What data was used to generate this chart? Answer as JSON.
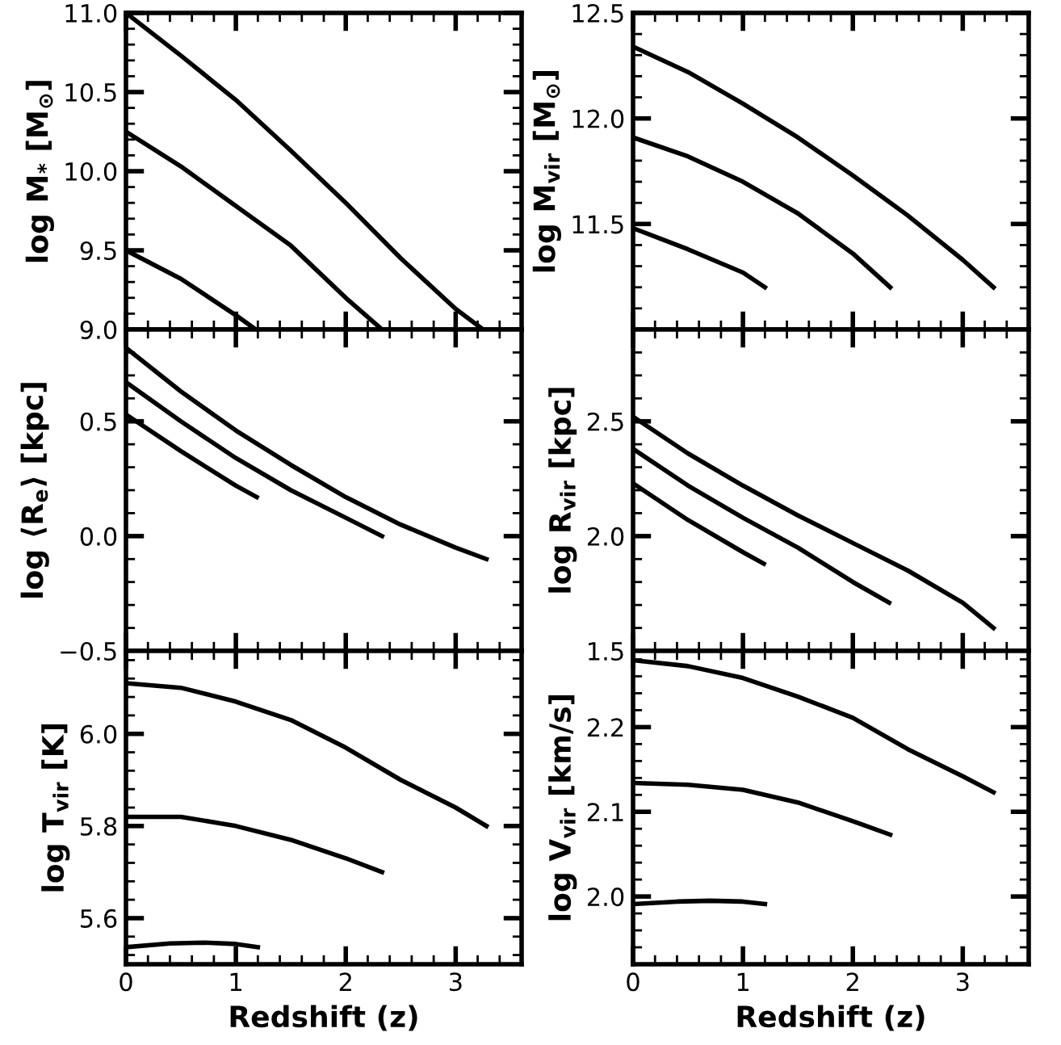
{
  "chart_data": [
    {
      "type": "line",
      "ylabel": "log M$_{*}$ [M$_{⊙}$]",
      "xlim": [
        0,
        3.6
      ],
      "xticks": [
        0,
        1,
        2,
        3
      ],
      "ylim": [
        9.0,
        11.0
      ],
      "yticks": [
        {
          "value": 9.0,
          "label": "9.0"
        },
        9.5,
        {
          "value": 10.0,
          "label": "10.0"
        },
        10.5,
        {
          "value": 11.0,
          "label": "11.0"
        }
      ],
      "tick_labels": "y",
      "grid": false,
      "legend": false,
      "marker": "none",
      "line_style": "solid",
      "series": [
        {
          "color": "#000000",
          "x": [
            0,
            0.5,
            1,
            1.5,
            2,
            2.5,
            3,
            3.25
          ],
          "values": [
            11.0,
            10.73,
            10.45,
            10.13,
            9.8,
            9.45,
            9.13,
            9.0
          ]
        },
        {
          "color": "#000000",
          "x": [
            0,
            0.5,
            1,
            1.5,
            2,
            2.33
          ],
          "values": [
            10.25,
            10.03,
            9.78,
            9.53,
            9.2,
            9.0
          ]
        },
        {
          "color": "#000000",
          "x": [
            0,
            0.5,
            1,
            1.18
          ],
          "values": [
            9.5,
            9.32,
            9.09,
            9.0
          ]
        }
      ]
    },
    {
      "type": "line",
      "ylabel": "log M$_{vir}$ [M$_{⊙}$]",
      "xlim": [
        0,
        3.6
      ],
      "xticks": [
        0,
        1,
        2,
        3
      ],
      "ylim": [
        11.0,
        12.5
      ],
      "yticks": [
        11.5,
        {
          "value": 12.0,
          "label": "12.0"
        },
        12.5
      ],
      "tick_labels": "y",
      "grid": false,
      "legend": false,
      "marker": "none",
      "line_style": "solid",
      "series": [
        {
          "color": "#000000",
          "x": [
            0,
            0.5,
            1,
            1.5,
            2,
            2.5,
            3,
            3.28
          ],
          "values": [
            12.34,
            12.22,
            12.07,
            11.91,
            11.73,
            11.54,
            11.33,
            11.2
          ]
        },
        {
          "color": "#000000",
          "x": [
            0,
            0.5,
            1,
            1.5,
            2,
            2.34
          ],
          "values": [
            11.91,
            11.82,
            11.7,
            11.55,
            11.36,
            11.2
          ]
        },
        {
          "color": "#000000",
          "x": [
            0,
            0.5,
            1,
            1.2
          ],
          "values": [
            11.48,
            11.38,
            11.27,
            11.2
          ]
        }
      ]
    },
    {
      "type": "line",
      "ylabel": "log ⟨R$_{e}$⟩ [kpc]",
      "xlim": [
        0,
        3.6
      ],
      "xticks": [
        0,
        1,
        2,
        3
      ],
      "ylim": [
        -0.5,
        0.9
      ],
      "yticks": [
        {
          "value": -0.5,
          "label": "−0.5"
        },
        {
          "value": 0.0,
          "label": "0.0"
        },
        0.5
      ],
      "tick_labels": "y",
      "grid": false,
      "legend": false,
      "marker": "none",
      "line_style": "solid",
      "series": [
        {
          "color": "#000000",
          "x": [
            0,
            0.5,
            1,
            1.5,
            2,
            2.5,
            3,
            3.28
          ],
          "values": [
            0.82,
            0.63,
            0.46,
            0.31,
            0.17,
            0.05,
            -0.05,
            -0.1
          ]
        },
        {
          "color": "#000000",
          "x": [
            0,
            0.5,
            1,
            1.5,
            2,
            2.33
          ],
          "values": [
            0.67,
            0.5,
            0.34,
            0.2,
            0.08,
            0.0
          ]
        },
        {
          "color": "#000000",
          "x": [
            0,
            0.5,
            1,
            1.19
          ],
          "values": [
            0.53,
            0.37,
            0.22,
            0.17
          ]
        }
      ]
    },
    {
      "type": "line",
      "ylabel": "log R$_{vir}$ [kpc]",
      "xlim": [
        0,
        3.6
      ],
      "xticks": [
        0,
        1,
        2,
        3
      ],
      "ylim": [
        1.5,
        2.9
      ],
      "yticks": [
        1.5,
        {
          "value": 2.0,
          "label": "2.0"
        },
        2.5
      ],
      "tick_labels": "y",
      "grid": false,
      "legend": false,
      "marker": "none",
      "line_style": "solid",
      "series": [
        {
          "color": "#000000",
          "x": [
            0,
            0.5,
            1,
            1.5,
            2,
            2.5,
            3,
            3.28
          ],
          "values": [
            2.52,
            2.36,
            2.22,
            2.09,
            1.97,
            1.85,
            1.71,
            1.6
          ]
        },
        {
          "color": "#000000",
          "x": [
            0,
            0.5,
            1,
            1.5,
            2,
            2.33
          ],
          "values": [
            2.38,
            2.22,
            2.08,
            1.95,
            1.8,
            1.71
          ]
        },
        {
          "color": "#000000",
          "x": [
            0,
            0.5,
            1,
            1.19
          ],
          "values": [
            2.23,
            2.07,
            1.93,
            1.88
          ]
        }
      ]
    },
    {
      "type": "line",
      "xlabel": "Redshift (z)",
      "ylabel": "log T$_{vir}$ [K]",
      "xlim": [
        0,
        3.6
      ],
      "xticks": [
        0,
        1,
        2,
        3
      ],
      "ylim": [
        5.5,
        6.18
      ],
      "yticks": [
        5.6,
        5.8,
        {
          "value": 6.0,
          "label": "6.0"
        }
      ],
      "grid": false,
      "legend": false,
      "marker": "none",
      "line_style": "solid",
      "series": [
        {
          "color": "#000000",
          "x": [
            0,
            0.5,
            1,
            1.5,
            2,
            2.5,
            3,
            3.28
          ],
          "values": [
            6.11,
            6.1,
            6.07,
            6.03,
            5.97,
            5.9,
            5.84,
            5.8
          ]
        },
        {
          "color": "#000000",
          "x": [
            0,
            0.5,
            1,
            1.5,
            2,
            2.33
          ],
          "values": [
            5.82,
            5.82,
            5.8,
            5.77,
            5.73,
            5.7
          ]
        },
        {
          "color": "#000000",
          "x": [
            0,
            0.4,
            0.7,
            1,
            1.2
          ],
          "values": [
            5.537,
            5.545,
            5.547,
            5.544,
            5.537
          ]
        }
      ]
    },
    {
      "type": "line",
      "xlabel": "Redshift (z)",
      "ylabel": "log V$_{vir}$ [km/s]",
      "xlim": [
        0,
        3.6
      ],
      "xticks": [
        0,
        1,
        2,
        3
      ],
      "ylim": [
        1.92,
        2.29
      ],
      "yticks": [
        {
          "value": 2.0,
          "label": "2.0"
        },
        2.1,
        2.2
      ],
      "grid": false,
      "legend": false,
      "marker": "none",
      "line_style": "solid",
      "series": [
        {
          "color": "#000000",
          "x": [
            0,
            0.5,
            1,
            1.5,
            2,
            2.5,
            3,
            3.28
          ],
          "values": [
            2.279,
            2.272,
            2.258,
            2.236,
            2.211,
            2.174,
            2.142,
            2.123
          ]
        },
        {
          "color": "#000000",
          "x": [
            0,
            0.5,
            1,
            1.5,
            2,
            2.34
          ],
          "values": [
            2.134,
            2.132,
            2.126,
            2.111,
            2.089,
            2.073
          ]
        },
        {
          "color": "#000000",
          "x": [
            0,
            0.4,
            0.7,
            1,
            1.2
          ],
          "values": [
            1.991,
            1.994,
            1.995,
            1.994,
            1.991
          ]
        }
      ]
    }
  ]
}
